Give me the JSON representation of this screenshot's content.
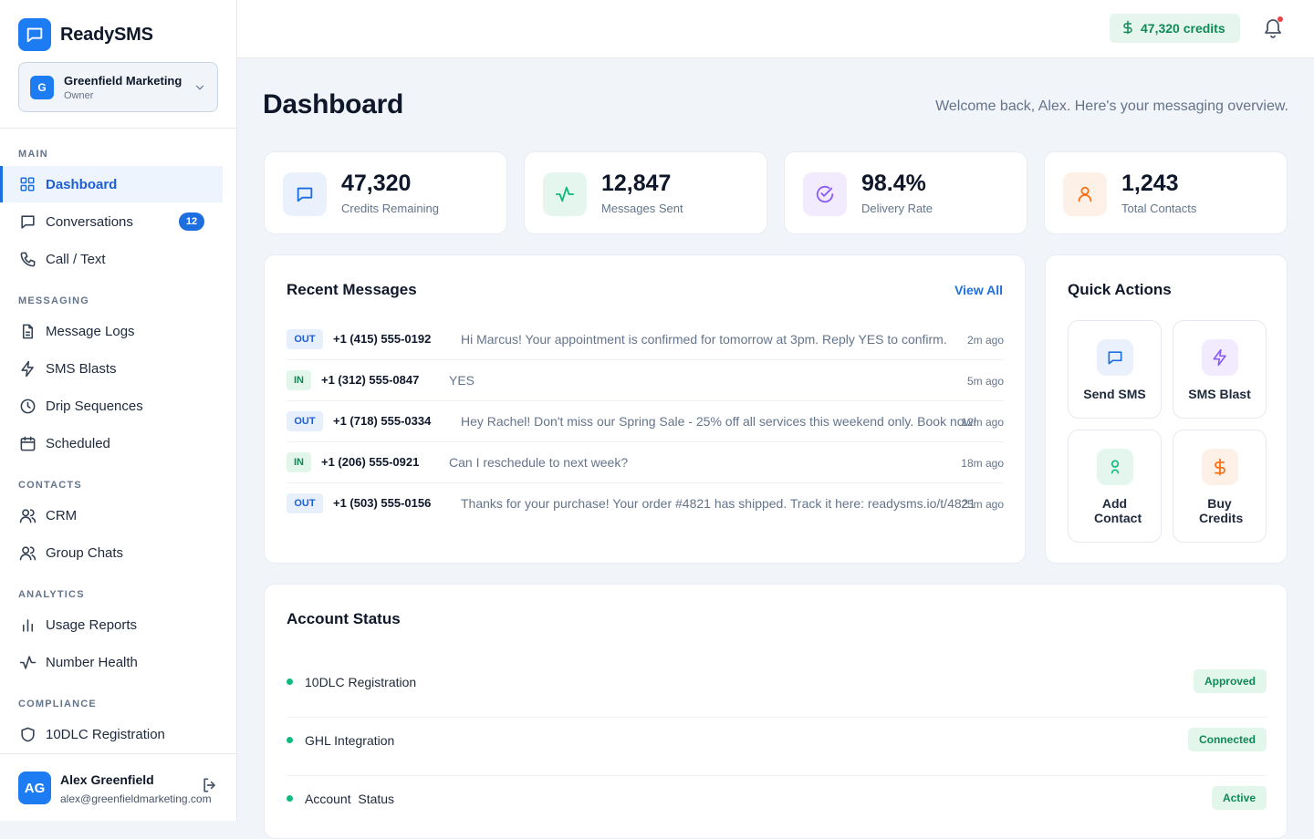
{
  "app": {
    "name": "ReadySMS"
  },
  "org": {
    "initial": "G",
    "name": "Greenfield Marketing",
    "role": "Owner"
  },
  "nav": {
    "sections": {
      "main": "MAIN",
      "messaging": "MESSAGING",
      "contacts": "CONTACTS",
      "analytics": "ANALYTICS",
      "compliance": "COMPLIANCE"
    },
    "items": {
      "dashboard": "Dashboard",
      "conversations": "Conversations",
      "conversations_badge": "12",
      "call_text": "Call / Text",
      "message_logs": "Message Logs",
      "sms_blasts": "SMS Blasts",
      "drip_sequences": "Drip Sequences",
      "scheduled": "Scheduled",
      "crm": "CRM",
      "group_chats": "Group Chats",
      "usage_reports": "Usage Reports",
      "number_health": "Number Health",
      "tendlc_registration": "10DLC Registration"
    }
  },
  "user": {
    "initials": "AG",
    "name": "Alex Greenfield",
    "email": "alex@greenfieldmarketing.com"
  },
  "topbar": {
    "credits": "47,320 credits"
  },
  "page": {
    "title": "Dashboard",
    "welcome": "Welcome back, Alex. Here's your messaging overview."
  },
  "stats": [
    {
      "value": "47,320",
      "label": "Credits Remaining"
    },
    {
      "value": "12,847",
      "label": "Messages Sent"
    },
    {
      "value": "98.4%",
      "label": "Delivery Rate"
    },
    {
      "value": "1,243",
      "label": "Total Contacts"
    }
  ],
  "recent": {
    "title": "Recent Messages",
    "view_all": "View All",
    "messages": [
      {
        "dir": "OUT",
        "phone": "+1 (415) 555-0192",
        "text": "Hi Marcus! Your appointment is confirmed for tomorrow at 3pm. Reply YES to confirm.",
        "time": "2m ago"
      },
      {
        "dir": "IN",
        "phone": "+1 (312) 555-0847",
        "text": "YES",
        "time": "5m ago"
      },
      {
        "dir": "OUT",
        "phone": "+1 (718) 555-0334",
        "text": "Hey Rachel! Don't miss our Spring Sale - 25% off all services this weekend only. Book now!",
        "time": "12m ago"
      },
      {
        "dir": "IN",
        "phone": "+1 (206) 555-0921",
        "text": "Can I reschedule to next week?",
        "time": "18m ago"
      },
      {
        "dir": "OUT",
        "phone": "+1 (503) 555-0156",
        "text": "Thanks for your purchase! Your order #4821 has shipped. Track it here: readysms.io/t/4821",
        "time": "25m ago"
      }
    ]
  },
  "quick_actions": {
    "title": "Quick Actions",
    "items": [
      {
        "label": "Send SMS"
      },
      {
        "label": "SMS Blast"
      },
      {
        "label": "Add Contact"
      },
      {
        "label": "Buy Credits"
      }
    ]
  },
  "account_status": {
    "title": "Account Status",
    "rows": [
      {
        "name": "10DLC Registration",
        "status": "Approved"
      },
      {
        "name": "GHL Integration",
        "status": "Connected"
      },
      {
        "name": "Account  Status",
        "status": "Active"
      }
    ]
  },
  "colors": {
    "brand": "#1d7cf2",
    "accent": "#1d6fe0",
    "success": "#0f8a55",
    "success_bg": "#e3f6ec"
  }
}
